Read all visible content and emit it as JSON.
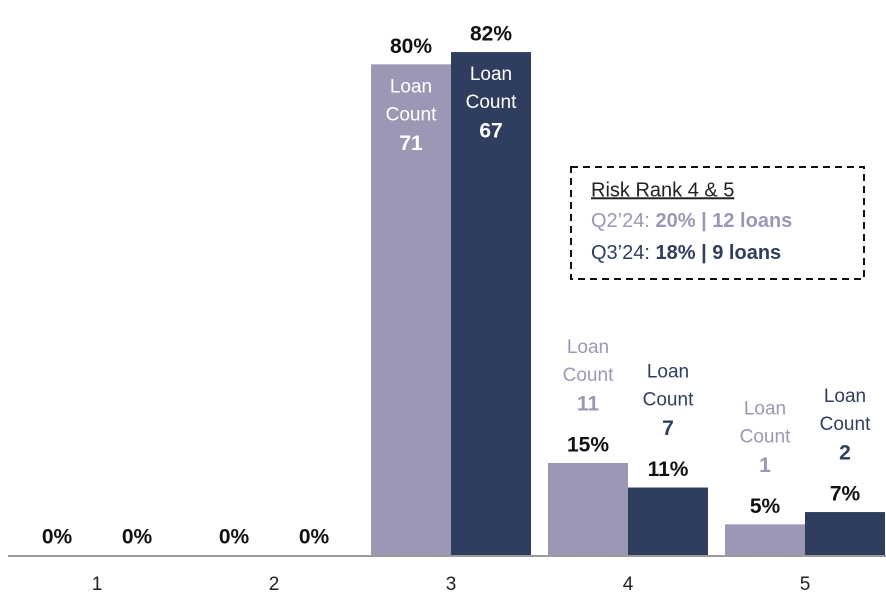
{
  "chart_data": {
    "type": "bar",
    "categories": [
      "1",
      "2",
      "3",
      "4",
      "5"
    ],
    "series": [
      {
        "color": "#9b98b6",
        "values": [
          0,
          0,
          80,
          15,
          5
        ],
        "value_labels": [
          "0%",
          "0%",
          "80%",
          "15%",
          "5%"
        ],
        "loan_counts": [
          null,
          null,
          71,
          11,
          1
        ]
      },
      {
        "color": "#2f3e5e",
        "values": [
          0,
          0,
          82,
          11,
          7
        ],
        "value_labels": [
          "0%",
          "0%",
          "82%",
          "11%",
          "7%"
        ],
        "loan_counts": [
          null,
          null,
          67,
          7,
          2
        ]
      }
    ],
    "loan_label_lines": [
      "Loan",
      "Count"
    ],
    "ylim": [
      0,
      90
    ],
    "annotation": {
      "title": "Risk Rank 4 & 5",
      "lines": [
        {
          "label": "Q2’24:",
          "value": "20% | 12 loans"
        },
        {
          "label": "Q3’24:",
          "value": "18% | 9 loans"
        }
      ]
    }
  }
}
